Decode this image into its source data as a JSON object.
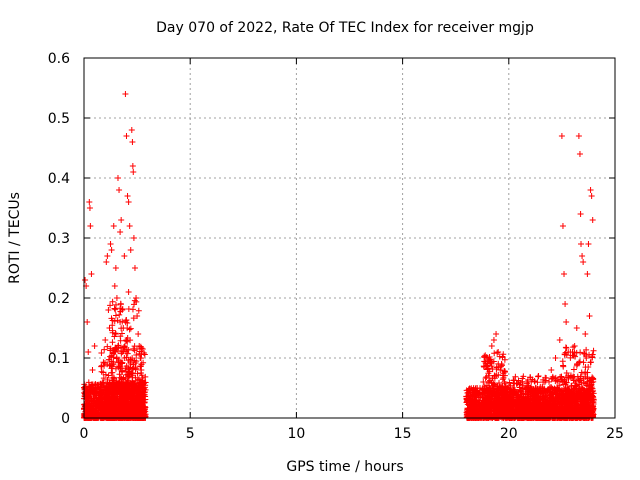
{
  "chart_data": {
    "type": "scatter",
    "title": "Day 070 of 2022, Rate Of TEC Index for receiver mgjp",
    "xlabel": "GPS time / hours",
    "ylabel": "ROTI / TECUs",
    "xlim": [
      0,
      25
    ],
    "ylim": [
      0,
      0.6
    ],
    "xticks": [
      "0",
      "5",
      "10",
      "15",
      "20",
      "25"
    ],
    "yticks": [
      "0",
      "0.1",
      "0.2",
      "0.3",
      "0.4",
      "0.5",
      "0.6"
    ],
    "grid": true,
    "marker": "+",
    "color": "#ff0000",
    "series": [
      {
        "points": [
          [
            0.05,
            0.23
          ],
          [
            0.1,
            0.22
          ],
          [
            0.15,
            0.16
          ],
          [
            0.2,
            0.11
          ],
          [
            0.25,
            0.36
          ],
          [
            0.28,
            0.35
          ],
          [
            0.3,
            0.32
          ],
          [
            0.35,
            0.24
          ],
          [
            0.4,
            0.08
          ],
          [
            0.5,
            0.12
          ],
          [
            0.6,
            0.05
          ],
          [
            0.7,
            0.03
          ],
          [
            0.8,
            0.04
          ],
          [
            0.9,
            0.05
          ],
          [
            1.0,
            0.13
          ],
          [
            1.05,
            0.26
          ],
          [
            1.1,
            0.27
          ],
          [
            1.15,
            0.18
          ],
          [
            1.2,
            0.15
          ],
          [
            1.25,
            0.29
          ],
          [
            1.3,
            0.28
          ],
          [
            1.4,
            0.32
          ],
          [
            1.45,
            0.22
          ],
          [
            1.5,
            0.25
          ],
          [
            1.55,
            0.2
          ],
          [
            1.6,
            0.4
          ],
          [
            1.65,
            0.38
          ],
          [
            1.7,
            0.31
          ],
          [
            1.75,
            0.33
          ],
          [
            1.8,
            0.18
          ],
          [
            1.85,
            0.15
          ],
          [
            1.9,
            0.27
          ],
          [
            1.95,
            0.54
          ],
          [
            2.0,
            0.47
          ],
          [
            2.05,
            0.37
          ],
          [
            2.1,
            0.36
          ],
          [
            2.15,
            0.32
          ],
          [
            2.2,
            0.28
          ],
          [
            2.25,
            0.48
          ],
          [
            2.28,
            0.46
          ],
          [
            2.3,
            0.42
          ],
          [
            2.32,
            0.41
          ],
          [
            2.35,
            0.3
          ],
          [
            2.4,
            0.25
          ],
          [
            2.45,
            0.2
          ],
          [
            2.5,
            0.17
          ],
          [
            2.55,
            0.14
          ],
          [
            2.6,
            0.12
          ],
          [
            2.65,
            0.1
          ],
          [
            2.7,
            0.08
          ],
          [
            2.75,
            0.06
          ],
          [
            2.8,
            0.04
          ],
          [
            1.5,
            0.14
          ],
          [
            1.6,
            0.12
          ],
          [
            1.7,
            0.16
          ],
          [
            1.8,
            0.11
          ],
          [
            1.9,
            0.1
          ],
          [
            2.0,
            0.13
          ],
          [
            2.1,
            0.21
          ],
          [
            2.2,
            0.09
          ],
          [
            18.5,
            0.05
          ],
          [
            18.8,
            0.06
          ],
          [
            19.0,
            0.09
          ],
          [
            19.2,
            0.12
          ],
          [
            19.3,
            0.13
          ],
          [
            19.4,
            0.14
          ],
          [
            19.5,
            0.11
          ],
          [
            19.6,
            0.08
          ],
          [
            19.8,
            0.06
          ],
          [
            20.2,
            0.05
          ],
          [
            20.6,
            0.04
          ],
          [
            21.0,
            0.05
          ],
          [
            21.4,
            0.07
          ],
          [
            21.7,
            0.06
          ],
          [
            22.0,
            0.08
          ],
          [
            22.2,
            0.1
          ],
          [
            22.4,
            0.13
          ],
          [
            22.5,
            0.47
          ],
          [
            22.55,
            0.32
          ],
          [
            22.6,
            0.24
          ],
          [
            22.65,
            0.19
          ],
          [
            22.7,
            0.16
          ],
          [
            22.8,
            0.07
          ],
          [
            23.0,
            0.11
          ],
          [
            23.1,
            0.12
          ],
          [
            23.2,
            0.15
          ],
          [
            23.3,
            0.47
          ],
          [
            23.35,
            0.44
          ],
          [
            23.38,
            0.34
          ],
          [
            23.4,
            0.29
          ],
          [
            23.45,
            0.27
          ],
          [
            23.5,
            0.26
          ],
          [
            23.6,
            0.14
          ],
          [
            23.65,
            0.1
          ],
          [
            23.7,
            0.24
          ],
          [
            23.75,
            0.29
          ],
          [
            23.8,
            0.17
          ],
          [
            23.85,
            0.38
          ],
          [
            23.9,
            0.37
          ],
          [
            23.95,
            0.33
          ]
        ]
      }
    ],
    "dense_bands": [
      {
        "x_range": [
          0.0,
          2.9
        ],
        "y_range": [
          0.0,
          0.06
        ],
        "count": 1400
      },
      {
        "x_range": [
          0.8,
          2.9
        ],
        "y_range": [
          0.0,
          0.12
        ],
        "count": 350
      },
      {
        "x_range": [
          1.2,
          2.6
        ],
        "y_range": [
          0.04,
          0.2
        ],
        "count": 160
      },
      {
        "x_range": [
          18.0,
          24.0
        ],
        "y_range": [
          0.0,
          0.05
        ],
        "count": 2200
      },
      {
        "x_range": [
          18.8,
          19.9
        ],
        "y_range": [
          0.02,
          0.11
        ],
        "count": 220
      },
      {
        "x_range": [
          20.0,
          24.0
        ],
        "y_range": [
          0.0,
          0.07
        ],
        "count": 500
      },
      {
        "x_range": [
          22.5,
          24.0
        ],
        "y_range": [
          0.03,
          0.12
        ],
        "count": 120
      }
    ]
  }
}
